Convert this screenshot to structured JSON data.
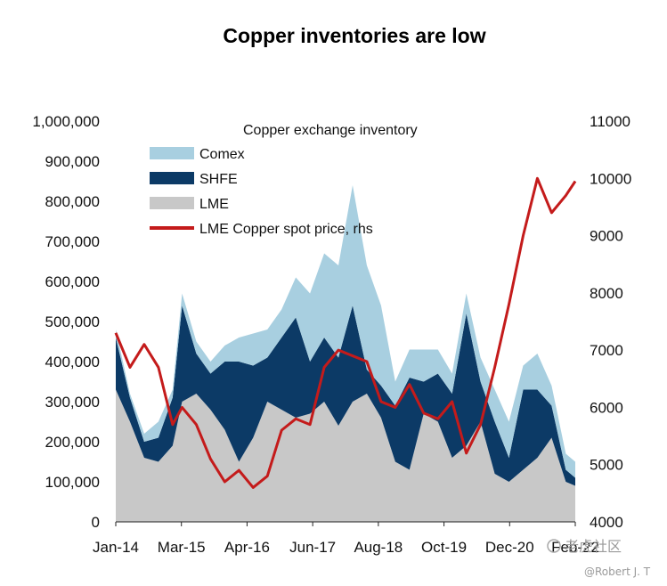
{
  "chart_data": {
    "type": "area",
    "title": "Copper inventories are low",
    "legend_title": "Copper exchange inventory",
    "legend_position": "top-left",
    "grid": false,
    "x_tick_labels": [
      "Jan-14",
      "Mar-15",
      "Apr-16",
      "Jun-17",
      "Aug-18",
      "Oct-19",
      "Dec-20",
      "Feb-22"
    ],
    "x": [
      "2014-01",
      "2014-04",
      "2014-07",
      "2014-10",
      "2015-01",
      "2015-03",
      "2015-06",
      "2015-09",
      "2015-12",
      "2016-03",
      "2016-06",
      "2016-09",
      "2016-12",
      "2017-03",
      "2017-06",
      "2017-09",
      "2017-12",
      "2018-03",
      "2018-06",
      "2018-09",
      "2018-12",
      "2019-03",
      "2019-06",
      "2019-09",
      "2019-12",
      "2020-03",
      "2020-06",
      "2020-09",
      "2020-12",
      "2021-03",
      "2021-06",
      "2021-09",
      "2021-12",
      "2022-02"
    ],
    "left_axis": {
      "ylim": [
        0,
        1000000
      ],
      "ticks": [
        "0",
        "100,000",
        "200,000",
        "300,000",
        "400,000",
        "500,000",
        "600,000",
        "700,000",
        "800,000",
        "900,000",
        "1,000,000"
      ]
    },
    "right_axis": {
      "ylim": [
        4000,
        11000
      ],
      "ticks": [
        "4000",
        "5000",
        "6000",
        "7000",
        "8000",
        "9000",
        "10000",
        "11000"
      ],
      "label": "rhs"
    },
    "series": [
      {
        "name": "LME",
        "axis": "left",
        "stacked": true,
        "color": "#c8c8c8",
        "values": [
          330000,
          250000,
          160000,
          150000,
          190000,
          300000,
          320000,
          280000,
          230000,
          150000,
          210000,
          300000,
          280000,
          260000,
          270000,
          300000,
          240000,
          300000,
          320000,
          260000,
          150000,
          130000,
          270000,
          250000,
          160000,
          190000,
          250000,
          120000,
          100000,
          130000,
          160000,
          210000,
          100000,
          90000
        ]
      },
      {
        "name": "SHFE",
        "axis": "left",
        "stacked": true,
        "color": "#0c3a66",
        "values": [
          130000,
          60000,
          40000,
          60000,
          120000,
          240000,
          100000,
          90000,
          170000,
          250000,
          180000,
          110000,
          180000,
          250000,
          130000,
          160000,
          170000,
          240000,
          60000,
          80000,
          140000,
          230000,
          80000,
          120000,
          160000,
          330000,
          100000,
          130000,
          60000,
          200000,
          170000,
          80000,
          30000,
          20000
        ]
      },
      {
        "name": "Comex",
        "axis": "left",
        "stacked": true,
        "color": "#a8cfe0",
        "values": [
          20000,
          10000,
          20000,
          40000,
          20000,
          30000,
          30000,
          30000,
          40000,
          60000,
          80000,
          70000,
          70000,
          100000,
          170000,
          210000,
          230000,
          300000,
          260000,
          200000,
          60000,
          70000,
          80000,
          60000,
          50000,
          50000,
          60000,
          80000,
          90000,
          60000,
          90000,
          50000,
          40000,
          40000
        ]
      },
      {
        "name": "LME Copper spot price, rhs",
        "axis": "right",
        "type": "line",
        "color": "#c41b1b",
        "values": [
          7300,
          6700,
          7100,
          6700,
          5700,
          6000,
          5700,
          5100,
          4700,
          4900,
          4600,
          4800,
          5600,
          5800,
          5700,
          6700,
          7000,
          6900,
          6800,
          6100,
          6000,
          6400,
          5900,
          5800,
          6100,
          5200,
          5700,
          6700,
          7800,
          9000,
          10000,
          9400,
          9700,
          9950
        ]
      }
    ]
  },
  "watermark": {
    "brand": "老虎社区",
    "user": "@Robert J. T"
  },
  "colors": {
    "background": "#ffffff",
    "comex": "#a8cfe0",
    "shfe": "#0c3a66",
    "lme": "#c8c8c8",
    "price": "#c41b1b"
  }
}
